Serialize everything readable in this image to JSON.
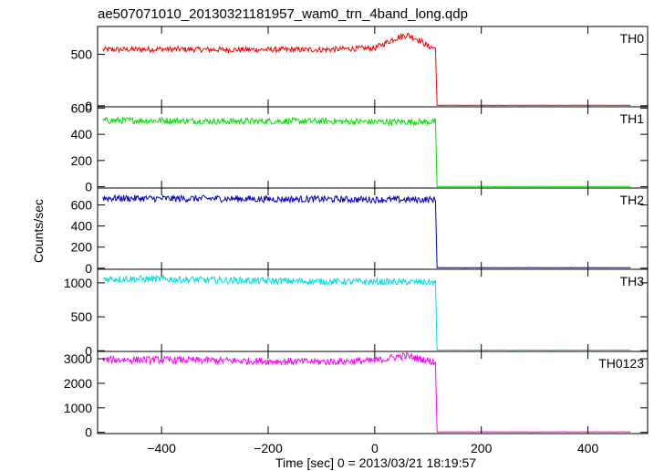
{
  "chart_data": {
    "type": "line",
    "title": "ae507071010_20130321181957_wam0_trn_4band_long.qdp",
    "xlabel": "Time [sec] 0 = 2013/03/21 18:19:57",
    "ylabel": "Counts/sec",
    "xlim": [
      -520,
      512
    ],
    "x_ticks": [
      -400,
      -200,
      0,
      200,
      400
    ],
    "x_tick_labels": [
      "−400",
      "−200",
      "0",
      "200",
      "400"
    ],
    "drop_time": 115,
    "x_start": -510,
    "x_end": 480,
    "panels": [
      {
        "name": "TH0",
        "color": "#ff0000",
        "ylim": [
          -10,
          770
        ],
        "y_ticks": [
          0,
          500
        ],
        "y_tick_labels": [
          "0",
          "500"
        ],
        "x": [
          -510,
          -400,
          -300,
          -200,
          -100,
          0,
          20,
          40,
          60,
          80,
          100,
          115,
          116,
          480
        ],
        "values": [
          545,
          550,
          545,
          545,
          545,
          560,
          610,
          660,
          690,
          650,
          580,
          555,
          5,
          5
        ]
      },
      {
        "name": "TH1",
        "color": "#00e000",
        "ylim": [
          -10,
          610
        ],
        "y_ticks": [
          0,
          200,
          400,
          600
        ],
        "y_tick_labels": [
          "0",
          "200",
          "400",
          "600"
        ],
        "x": [
          -510,
          -400,
          -300,
          -200,
          -100,
          0,
          100,
          115,
          116,
          480
        ],
        "values": [
          505,
          505,
          500,
          500,
          500,
          495,
          495,
          495,
          2,
          2
        ]
      },
      {
        "name": "TH2",
        "color": "#0000d0",
        "ylim": [
          -10,
          760
        ],
        "y_ticks": [
          0,
          200,
          400,
          600
        ],
        "y_tick_labels": [
          "0",
          "200",
          "400",
          "600"
        ],
        "x": [
          -510,
          -400,
          -300,
          -200,
          -100,
          0,
          100,
          115,
          116,
          480
        ],
        "values": [
          665,
          660,
          660,
          655,
          655,
          650,
          650,
          650,
          5,
          5
        ]
      },
      {
        "name": "TH3",
        "color": "#00e0e0",
        "ylim": [
          -10,
          1200
        ],
        "y_ticks": [
          0,
          500,
          1000
        ],
        "y_tick_labels": [
          "0",
          "500",
          "1000"
        ],
        "x": [
          -510,
          -400,
          -300,
          -200,
          -100,
          0,
          100,
          115,
          116,
          480
        ],
        "values": [
          1060,
          1055,
          1040,
          1030,
          1020,
          1015,
          1010,
          1000,
          10,
          10
        ]
      },
      {
        "name": "TH0123",
        "color": "#ff00ff",
        "ylim": [
          -50,
          3300
        ],
        "y_ticks": [
          0,
          1000,
          2000,
          3000
        ],
        "y_tick_labels": [
          "0",
          "1000",
          "2000",
          "3000"
        ],
        "x": [
          -510,
          -400,
          -300,
          -200,
          -100,
          0,
          20,
          40,
          60,
          80,
          100,
          115,
          116,
          480
        ],
        "values": [
          2960,
          2960,
          2930,
          2900,
          2880,
          2920,
          2990,
          3080,
          3120,
          3020,
          2920,
          2860,
          20,
          20
        ]
      }
    ]
  }
}
